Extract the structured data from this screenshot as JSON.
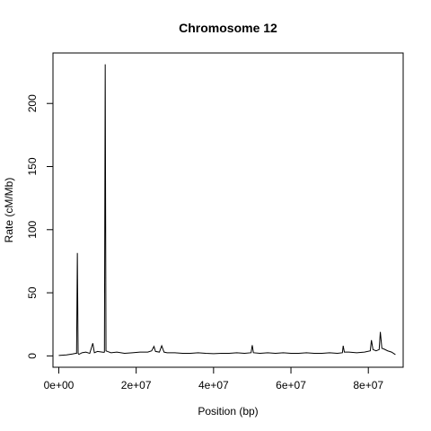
{
  "chart_data": {
    "type": "line",
    "title": "Chromosome 12",
    "xlabel": "Position (bp)",
    "ylabel": "Rate (cM/Mb)",
    "xlim": [
      -1500000,
      89000000
    ],
    "ylim": [
      -9000,
      240000
    ],
    "y_scale_note": "",
    "xticks": [
      {
        "value": 0,
        "label": "0e+00"
      },
      {
        "value": 20000000,
        "label": "2e+07"
      },
      {
        "value": 40000000,
        "label": "4e+07"
      },
      {
        "value": 60000000,
        "label": "6e+07"
      },
      {
        "value": 80000000,
        "label": "8e+07"
      }
    ],
    "yticks": [
      {
        "value": 0,
        "label": "0"
      },
      {
        "value": 50,
        "label": "50"
      },
      {
        "value": 100,
        "label": "100"
      },
      {
        "value": 150,
        "label": "150"
      },
      {
        "value": 200,
        "label": "200"
      }
    ],
    "grid": false,
    "legend": "none",
    "line_color": "#000000",
    "series": [
      {
        "x": [
          0,
          2000000,
          3500000,
          4400000,
          4600000,
          4800000,
          5000000,
          5200000,
          6000000,
          7000000,
          8000000,
          8800000,
          9200000,
          10000000,
          11200000,
          11600000,
          11800000,
          12000000,
          12200000,
          12600000,
          13500000,
          15000000,
          17000000,
          19000000,
          21000000,
          23000000,
          24000000,
          24600000,
          25000000,
          26000000,
          26600000,
          27200000,
          28000000,
          30000000,
          32000000,
          34000000,
          36000000,
          38000000,
          40000000,
          42000000,
          44000000,
          46000000,
          48000000,
          49700000,
          50000000,
          50300000,
          52000000,
          54000000,
          56000000,
          58000000,
          60000000,
          62000000,
          64000000,
          66000000,
          68000000,
          70000000,
          72000000,
          73300000,
          73500000,
          73800000,
          75000000,
          77000000,
          79000000,
          80500000,
          80800000,
          81200000,
          82000000,
          82800000,
          83100000,
          83500000,
          84000000,
          85000000,
          86000000,
          87000000
        ],
        "y": [
          0.3,
          0.8,
          1.5,
          2.0,
          2.0,
          81.5,
          2.0,
          1.2,
          2.5,
          3.0,
          2.0,
          10.0,
          2.5,
          3.5,
          3.0,
          2.8,
          3.0,
          231.0,
          4.0,
          3.5,
          2.5,
          3.0,
          2.0,
          2.5,
          3.0,
          3.0,
          4.0,
          7.5,
          3.5,
          3.0,
          8.0,
          3.0,
          2.5,
          2.5,
          2.0,
          2.0,
          2.5,
          2.0,
          1.8,
          2.0,
          2.0,
          2.5,
          2.0,
          2.5,
          8.5,
          2.5,
          2.0,
          2.5,
          2.0,
          2.5,
          2.0,
          2.0,
          2.5,
          2.0,
          2.0,
          2.5,
          2.0,
          2.5,
          8.0,
          3.0,
          3.0,
          2.5,
          3.0,
          4.0,
          12.5,
          5.0,
          4.0,
          5.0,
          19.0,
          6.0,
          5.5,
          4.0,
          3.0,
          1.0
        ]
      }
    ]
  }
}
